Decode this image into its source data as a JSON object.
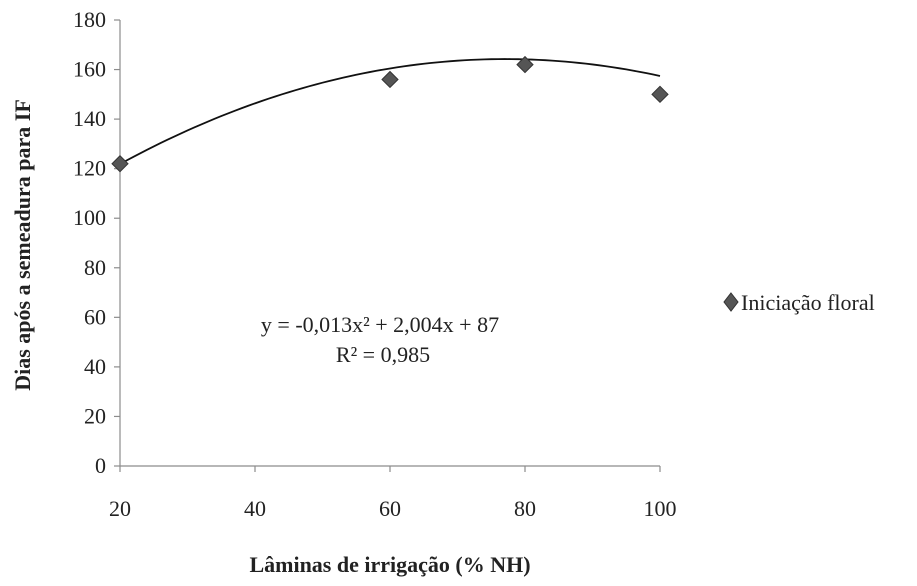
{
  "chart_data": {
    "type": "scatter",
    "title": "",
    "xlabel": "Lâminas de irrigação (% NH)",
    "ylabel": "Dias após a semeadura para IF",
    "xlim": [
      20,
      100
    ],
    "ylim": [
      0,
      180
    ],
    "x_ticks": [
      20,
      40,
      60,
      80,
      100
    ],
    "y_ticks": [
      0,
      20,
      40,
      60,
      80,
      100,
      120,
      140,
      160,
      180
    ],
    "grid": false,
    "legend_position": "right",
    "series": [
      {
        "name": "Iniciação floral",
        "marker": "diamond",
        "color": "#555555",
        "x": [
          20,
          60,
          80,
          100
        ],
        "y": [
          122,
          156,
          162,
          150
        ]
      }
    ],
    "trendline": {
      "type": "polynomial",
      "coefficients": {
        "a": -0.013,
        "b": 2.004,
        "c": 87
      },
      "color": "#111111"
    },
    "annotations": {
      "equation": "y = -0,013x² + 2,004x + 87",
      "r_squared": "R² = 0,985"
    }
  }
}
